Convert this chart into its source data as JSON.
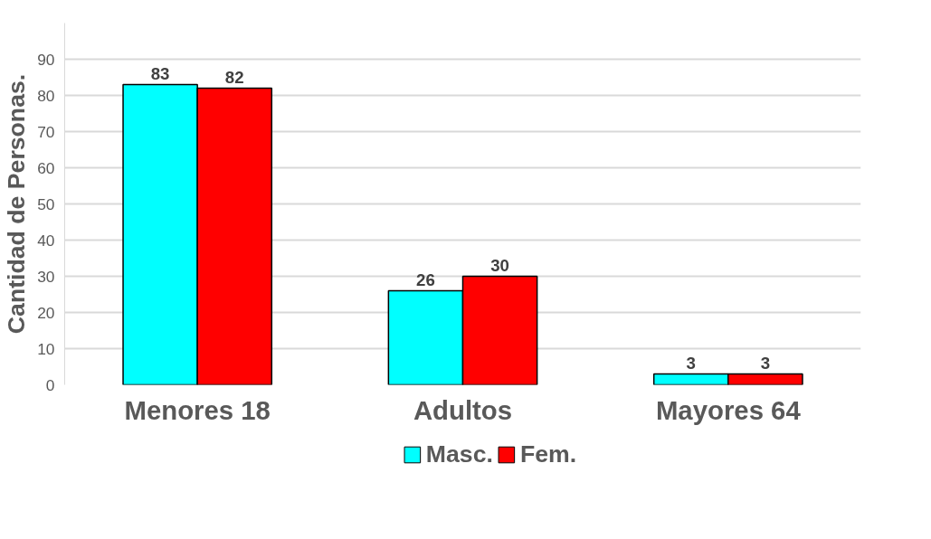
{
  "chart_data": {
    "type": "bar",
    "ylabel": "Cantidad de Personas.",
    "categories": [
      "Menores 18",
      "Adultos",
      "Mayores 64"
    ],
    "series": [
      {
        "name": "Masc.",
        "color": "#00ffff",
        "values": [
          83,
          26,
          3
        ]
      },
      {
        "name": "Fem.",
        "color": "#ff0000",
        "values": [
          82,
          30,
          3
        ]
      }
    ],
    "ylim": [
      0,
      100
    ],
    "yticks": [
      0,
      10,
      20,
      30,
      40,
      50,
      60,
      70,
      80,
      90
    ],
    "grid": "y",
    "legend": "bottom",
    "data_labels": true
  }
}
